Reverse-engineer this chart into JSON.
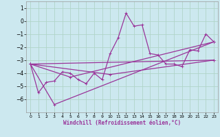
{
  "xlabel": "Windchill (Refroidissement éolien,°C)",
  "background_color": "#cce8ef",
  "grid_color": "#b0d4c8",
  "line_color": "#993399",
  "series": [
    [
      0,
      -3.3
    ],
    [
      1,
      -5.5
    ],
    [
      2,
      -4.7
    ],
    [
      3,
      -4.6
    ],
    [
      4,
      -3.9
    ],
    [
      5,
      -4.0
    ],
    [
      6,
      -4.5
    ],
    [
      7,
      -4.8
    ],
    [
      8,
      -4.0
    ],
    [
      9,
      -4.5
    ],
    [
      10,
      -2.5
    ],
    [
      11,
      -1.3
    ],
    [
      12,
      0.6
    ],
    [
      13,
      -0.4
    ],
    [
      14,
      -0.3
    ],
    [
      15,
      -2.5
    ],
    [
      16,
      -2.6
    ],
    [
      17,
      -3.3
    ],
    [
      18,
      -3.3
    ],
    [
      19,
      -3.5
    ],
    [
      20,
      -2.2
    ],
    [
      21,
      -2.3
    ],
    [
      22,
      -1.0
    ],
    [
      23,
      -1.6
    ]
  ],
  "line2": [
    [
      0,
      -3.3
    ],
    [
      3,
      -6.4
    ],
    [
      23,
      -1.6
    ]
  ],
  "line3": [
    [
      0,
      -3.3
    ],
    [
      23,
      -3.0
    ]
  ],
  "line4": [
    [
      0,
      -3.3
    ],
    [
      10,
      -4.1
    ],
    [
      23,
      -3.0
    ]
  ],
  "line5": [
    [
      0,
      -3.3
    ],
    [
      5,
      -4.3
    ],
    [
      23,
      -1.6
    ]
  ],
  "xlim": [
    -0.5,
    23.5
  ],
  "ylim": [
    -7.0,
    1.5
  ],
  "yticks": [
    -6,
    -5,
    -4,
    -3,
    -2,
    -1,
    0,
    1
  ],
  "xticks": [
    0,
    1,
    2,
    3,
    4,
    5,
    6,
    7,
    8,
    9,
    10,
    11,
    12,
    13,
    14,
    15,
    16,
    17,
    18,
    19,
    20,
    21,
    22,
    23
  ]
}
